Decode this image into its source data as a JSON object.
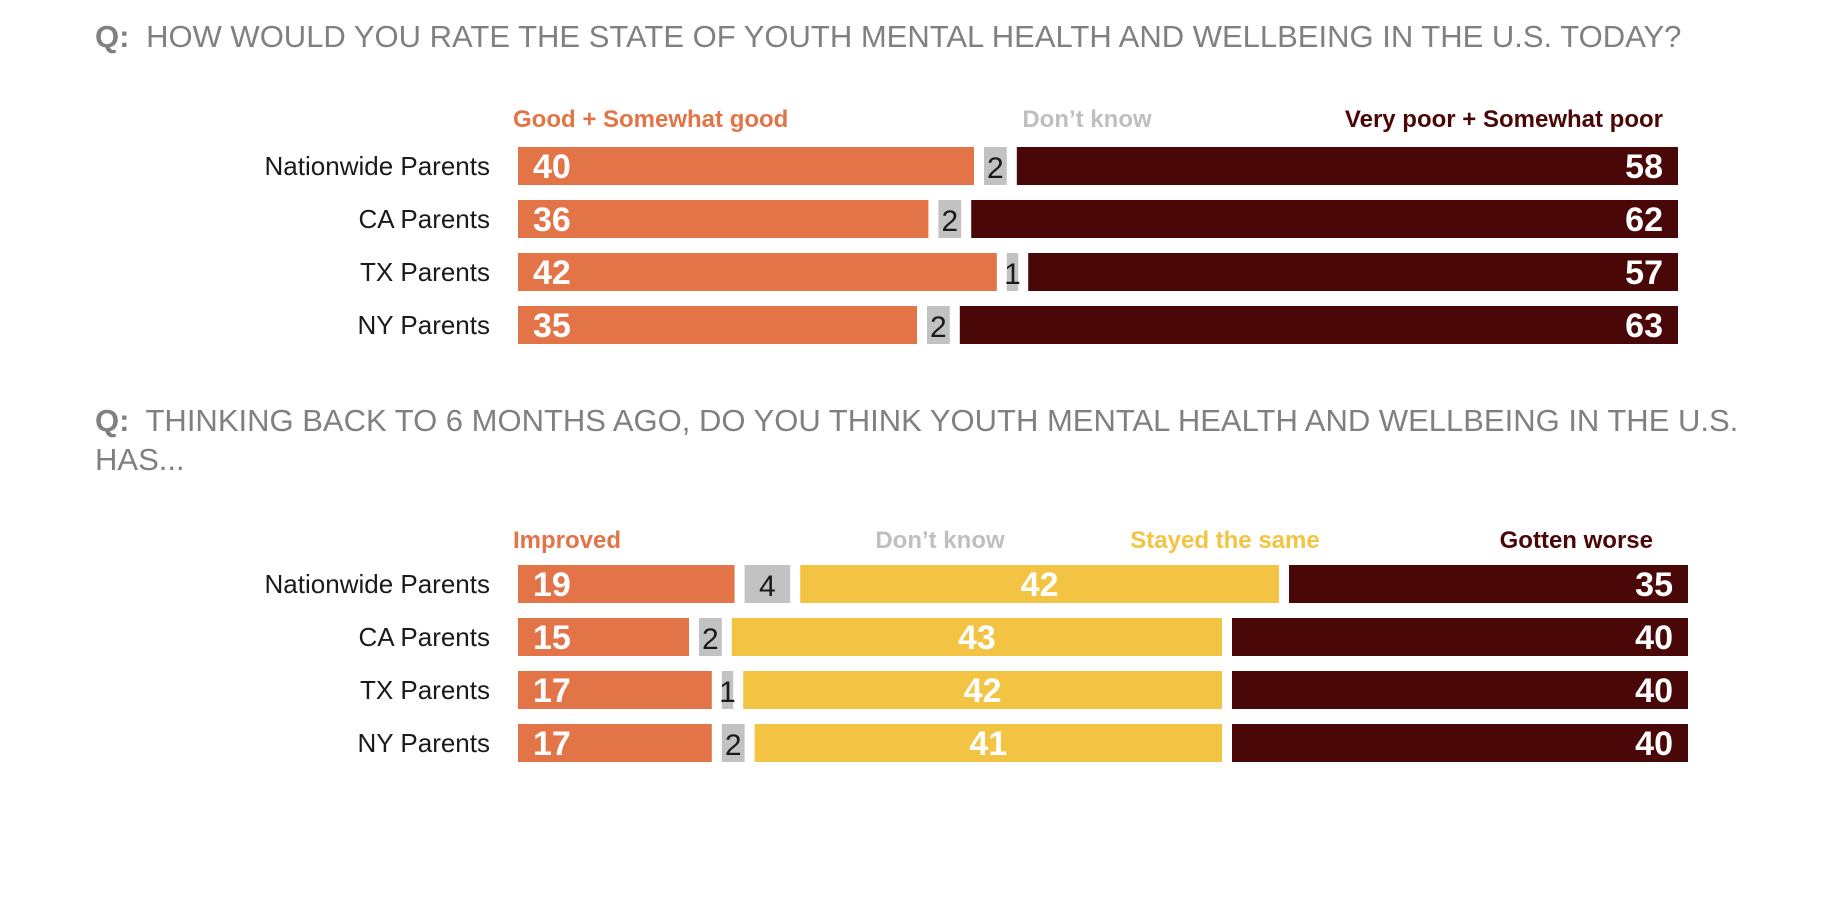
{
  "colors": {
    "good": "#E37448",
    "dont_know": "#C2C2C2",
    "poor": "#4A0707",
    "same": "#F3C443",
    "question": "#808080",
    "dont_know_legend": "#BFBFBF"
  },
  "chart_data": [
    {
      "type": "bar",
      "orientation": "horizontal",
      "stacked": true,
      "question_prefix": "Q:",
      "title": "HOW WOULD YOU RATE THE STATE OF YOUTH MENTAL HEALTH AND WELLBEING IN THE U.S. TODAY?",
      "categories": [
        "Nationwide Parents",
        "CA Parents",
        "TX Parents",
        "NY Parents"
      ],
      "series": [
        {
          "name": "Good + Somewhat good",
          "color": "#E37448",
          "values": [
            40,
            36,
            42,
            35
          ]
        },
        {
          "name": "Don’t know",
          "color": "#C2C2C2",
          "values": [
            2,
            2,
            1,
            2
          ]
        },
        {
          "name": "Very poor + Somewhat poor",
          "color": "#4A0707",
          "values": [
            58,
            62,
            57,
            63
          ]
        }
      ],
      "legend": "top",
      "grid": false
    },
    {
      "type": "bar",
      "orientation": "horizontal",
      "stacked": true,
      "question_prefix": "Q:",
      "title": "THINKING BACK TO 6 MONTHS AGO, DO YOU THINK YOUTH MENTAL HEALTH AND WELLBEING IN THE U.S. HAS...",
      "categories": [
        "Nationwide Parents",
        "CA Parents",
        "TX Parents",
        "NY Parents"
      ],
      "series": [
        {
          "name": "Improved",
          "color": "#E37448",
          "values": [
            19,
            15,
            17,
            17
          ]
        },
        {
          "name": "Don’t know",
          "color": "#C2C2C2",
          "values": [
            4,
            2,
            1,
            2
          ]
        },
        {
          "name": "Stayed the same",
          "color": "#F3C443",
          "values": [
            42,
            43,
            42,
            41
          ]
        },
        {
          "name": "Gotten worse",
          "color": "#4A0707",
          "values": [
            35,
            40,
            40,
            40
          ]
        }
      ],
      "legend": "top",
      "grid": false
    }
  ]
}
